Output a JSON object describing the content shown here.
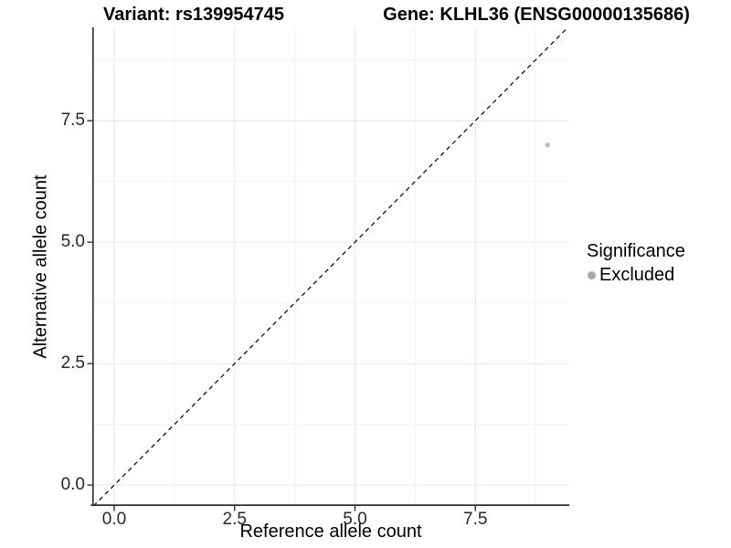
{
  "titles": {
    "variant": "Variant: rs139954745",
    "gene": "Gene: KLHL36 (ENSG00000135686)"
  },
  "chart_data": {
    "type": "scatter",
    "xlabel": "Reference allele count",
    "ylabel": "Alternative allele count",
    "x_ticks": [
      {
        "label": "0.0",
        "value": 0
      },
      {
        "label": "2.5",
        "value": 2.5
      },
      {
        "label": "5.0",
        "value": 5
      },
      {
        "label": "7.5",
        "value": 7.5
      }
    ],
    "y_ticks": [
      {
        "label": "0.0",
        "value": 0
      },
      {
        "label": "2.5",
        "value": 2.5
      },
      {
        "label": "5.0",
        "value": 5
      },
      {
        "label": "7.5",
        "value": 7.5
      }
    ],
    "x_minor_ticks": [
      1.25,
      3.75,
      6.25,
      8.75
    ],
    "y_minor_ticks": [
      1.25,
      3.75,
      6.25,
      8.75
    ],
    "xlim": [
      -0.455,
      9.45
    ],
    "ylim": [
      -0.43,
      9.42
    ],
    "grid": {
      "major_color": "#e7e7e7",
      "minor_color": "#f3f3f3"
    },
    "axis_color": "#2e2e2e",
    "tick_text_color": "#262626",
    "reference_line": {
      "type": "identity",
      "style": "dashed",
      "color": "#111111"
    },
    "points": [
      {
        "x": 9,
        "y": 7,
        "series": "Excluded"
      }
    ],
    "point_color": "#b9b9b9",
    "legend": {
      "title": "Significance",
      "position": "right",
      "items": [
        {
          "label": "Excluded",
          "color": "#a9a9a9"
        }
      ]
    }
  }
}
